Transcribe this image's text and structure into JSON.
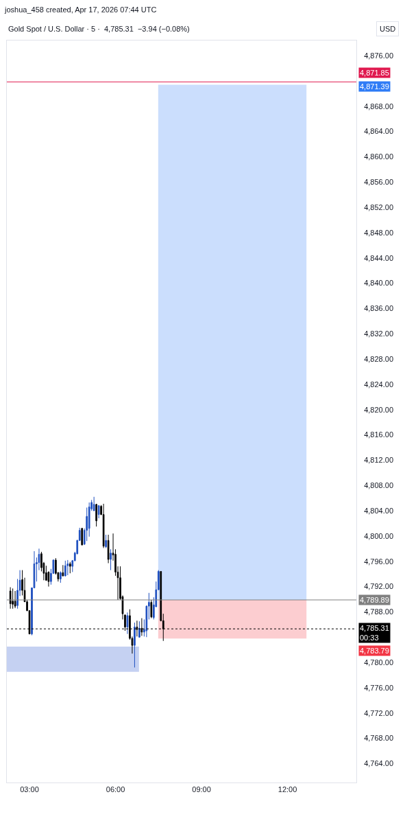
{
  "chart_data": {
    "type": "candlestick",
    "title": "Gold Spot / U.S. Dollar · 5 ·  4,785.31  −3.94 (−0.08%)",
    "annotations": [
      "joshua_458 created, Apr 17, 2026 07:44 UTC",
      "USD",
      "00:33",
      "4,871.39",
      "4,783.79"
    ],
    "x": [
      2.3333,
      2.4167,
      2.5,
      2.5833,
      2.6667,
      2.75,
      2.8333,
      2.9167,
      3,
      3.0833,
      3.1667,
      3.25,
      3.3333,
      3.4167,
      3.5,
      3.5833,
      3.6667,
      3.75,
      3.8333,
      3.9167,
      4,
      4.0833,
      4.1667,
      4.25,
      4.3333,
      4.4167,
      4.5,
      4.5833,
      4.6667,
      4.75,
      4.8333,
      4.9167,
      5,
      5.0833,
      5.1667,
      5.25,
      5.3333,
      5.4167,
      5.5,
      5.5833,
      5.6667,
      5.75,
      5.8333,
      5.9167,
      6,
      6.0833,
      6.1667,
      6.25,
      6.3333,
      6.4167,
      6.5,
      6.5833,
      6.6667,
      6.75,
      6.8333,
      6.9167,
      7,
      7.0833,
      7.1667,
      7.25,
      7.3333,
      7.4167,
      7.5,
      7.5833,
      7.6667
    ],
    "ohlc": [
      [
        4791.3,
        4791.9,
        4788.5,
        4789.3
      ],
      [
        4789.7,
        4791.7,
        4788.5,
        4789.2
      ],
      [
        4789.7,
        4791.3,
        4788.6,
        4788.9
      ],
      [
        4789.0,
        4793.2,
        4788.5,
        4791.4
      ],
      [
        4791.4,
        4794.6,
        4790.5,
        4793.0
      ],
      [
        4793.1,
        4794.6,
        4790.6,
        4791.4
      ],
      [
        4791.4,
        4793.4,
        4789.6,
        4789.6
      ],
      [
        4789.6,
        4789.9,
        4788.1,
        4788.2
      ],
      [
        4788.2,
        4788.2,
        4784.5,
        4784.5
      ],
      [
        4784.5,
        4791.8,
        4784.3,
        4791.8
      ],
      [
        4791.8,
        4797.6,
        4791.8,
        4795.6
      ],
      [
        4795.6,
        4796.6,
        4792.8,
        4795.8
      ],
      [
        4795.8,
        4798.0,
        4794.6,
        4797.1
      ],
      [
        4797.2,
        4797.5,
        4794.4,
        4795.0
      ],
      [
        4795.7,
        4795.9,
        4793.0,
        4794.1
      ],
      [
        4794.2,
        4795.3,
        4792.9,
        4793.0
      ],
      [
        4794.3,
        4794.4,
        4792.0,
        4792.8
      ],
      [
        4792.8,
        4794.8,
        4792.3,
        4794.1
      ],
      [
        4794.1,
        4796.3,
        4794.0,
        4796.2
      ],
      [
        4796.2,
        4796.5,
        4793.9,
        4794.1
      ],
      [
        4794.2,
        4794.3,
        4792.8,
        4793.2
      ],
      [
        4793.2,
        4794.4,
        4792.6,
        4794.2
      ],
      [
        4794.2,
        4795.4,
        4793.6,
        4793.7
      ],
      [
        4793.7,
        4796.1,
        4793.6,
        4795.3
      ],
      [
        4795.3,
        4796.2,
        4793.8,
        4795.6
      ],
      [
        4795.6,
        4795.9,
        4794.1,
        4795.2
      ],
      [
        4795.2,
        4796.2,
        4794.3,
        4796.1
      ],
      [
        4796.1,
        4797.5,
        4796.0,
        4797.3
      ],
      [
        4797.2,
        4799.4,
        4797.1,
        4799.3
      ],
      [
        4799.3,
        4801.3,
        4799.2,
        4800.9
      ],
      [
        4801.2,
        4801.3,
        4798.5,
        4798.6
      ],
      [
        4798.7,
        4801.2,
        4798.6,
        4800.9
      ],
      [
        4800.9,
        4804.5,
        4799.2,
        4803.1
      ],
      [
        4801.2,
        4805.3,
        4799.9,
        4804.6
      ],
      [
        4804.3,
        4805.7,
        4804.0,
        4805.3
      ],
      [
        4804.0,
        4806.2,
        4804.0,
        4805.0
      ],
      [
        4805.0,
        4805.1,
        4801.5,
        4802.4
      ],
      [
        4803.4,
        4804.9,
        4802.8,
        4804.8
      ],
      [
        4804.7,
        4804.9,
        4803.3,
        4803.4
      ],
      [
        4803.4,
        4805.1,
        4798.1,
        4798.4
      ],
      [
        4798.3,
        4800.2,
        4798.1,
        4799.3
      ],
      [
        4799.3,
        4800.2,
        4795.7,
        4796.3
      ],
      [
        4796.3,
        4797.9,
        4794.6,
        4797.3
      ],
      [
        4797.3,
        4800.4,
        4796.1,
        4797.0
      ],
      [
        4797.1,
        4797.9,
        4793.7,
        4794.3
      ],
      [
        4794.3,
        4795.2,
        4789.9,
        4793.4
      ],
      [
        4793.4,
        4795.2,
        4789.9,
        4790.1
      ],
      [
        4790.4,
        4790.6,
        4786.8,
        4787.7
      ],
      [
        4787.5,
        4787.6,
        4785.0,
        4785.6
      ],
      [
        4785.6,
        4787.9,
        4784.5,
        4787.4
      ],
      [
        4787.4,
        4788.4,
        4783.6,
        4783.8
      ],
      [
        4783.8,
        4784.1,
        4781.4,
        4782.7
      ],
      [
        4782.7,
        4786.3,
        4779.2,
        4785.6
      ],
      [
        4785.6,
        4786.6,
        4784.1,
        4785.2
      ],
      [
        4784.0,
        4786.5,
        4783.9,
        4785.4
      ],
      [
        4785.4,
        4787.0,
        4784.2,
        4784.8
      ],
      [
        4784.8,
        4786.8,
        4784.1,
        4785.2
      ],
      [
        4785.0,
        4789.0,
        4784.0,
        4788.9
      ],
      [
        4788.9,
        4791.0,
        4786.8,
        4789.5
      ],
      [
        4789.5,
        4789.9,
        4787.0,
        4787.2
      ],
      [
        4787.1,
        4790.3,
        4786.8,
        4789.1
      ],
      [
        4788.8,
        4792.8,
        4788.8,
        4791.5
      ],
      [
        4791.5,
        4794.6,
        4791.5,
        4794.4
      ],
      [
        4794.4,
        4794.4,
        4786.5,
        4786.6
      ],
      [
        4786.6,
        4787.7,
        4783.4,
        4785.31
      ]
    ],
    "colors": [
      "#000000",
      "#000000",
      "#000000",
      "#1e4fbf",
      "#1e4fbf",
      "#000000",
      "#000000",
      "#000000",
      "#000000",
      "#1e4fbf",
      "#1e4fbf",
      "#1e4fbf",
      "#1e4fbf",
      "#000000",
      "#000000",
      "#000000",
      "#000000",
      "#1e4fbf",
      "#1e4fbf",
      "#000000",
      "#000000",
      "#1e4fbf",
      "#000000",
      "#1e4fbf",
      "#1e4fbf",
      "#000000",
      "#1e4fbf",
      "#1e4fbf",
      "#1e4fbf",
      "#1e4fbf",
      "#000000",
      "#1e4fbf",
      "#1e4fbf",
      "#1e4fbf",
      "#1e4fbf",
      "#1e4fbf",
      "#000000",
      "#1e4fbf",
      "#000000",
      "#000000",
      "#1e4fbf",
      "#000000",
      "#1e4fbf",
      "#000000",
      "#000000",
      "#000000",
      "#000000",
      "#000000",
      "#000000",
      "#1e4fbf",
      "#000000",
      "#000000",
      "#1e4fbf",
      "#000000",
      "#1e4fbf",
      "#000000",
      "#1e4fbf",
      "#1e4fbf",
      "#1e4fbf",
      "#000000",
      "#1e4fbf",
      "#1e4fbf",
      "#1e4fbf",
      "#000000",
      "#000000"
    ],
    "xlim": [
      2.211,
      14.4
    ],
    "xticks": [
      {
        "value": 3,
        "label": "03:00"
      },
      {
        "value": 6,
        "label": "06:00"
      },
      {
        "value": 9,
        "label": "09:00"
      },
      {
        "value": 12,
        "label": "12:00"
      }
    ],
    "ylim": [
      4761.0,
      4878.4
    ],
    "yticks": [
      {
        "value": 4764,
        "label": "4,764.00"
      },
      {
        "value": 4768,
        "label": "4,768.00"
      },
      {
        "value": 4772,
        "label": "4,772.00"
      },
      {
        "value": 4776,
        "label": "4,776.00"
      },
      {
        "value": 4780,
        "label": "4,780.00"
      },
      {
        "value": 4788,
        "label": "4,788.00"
      },
      {
        "value": 4792,
        "label": "4,792.00"
      },
      {
        "value": 4796,
        "label": "4,796.00"
      },
      {
        "value": 4800,
        "label": "4,800.00"
      },
      {
        "value": 4804,
        "label": "4,804.00"
      },
      {
        "value": 4808,
        "label": "4,808.00"
      },
      {
        "value": 4812,
        "label": "4,812.00"
      },
      {
        "value": 4816,
        "label": "4,816.00"
      },
      {
        "value": 4820,
        "label": "4,820.00"
      },
      {
        "value": 4824,
        "label": "4,824.00"
      },
      {
        "value": 4828,
        "label": "4,828.00"
      },
      {
        "value": 4832,
        "label": "4,832.00"
      },
      {
        "value": 4836,
        "label": "4,836.00"
      },
      {
        "value": 4840,
        "label": "4,840.00"
      },
      {
        "value": 4844,
        "label": "4,844.00"
      },
      {
        "value": 4848,
        "label": "4,848.00"
      },
      {
        "value": 4852,
        "label": "4,852.00"
      },
      {
        "value": 4856,
        "label": "4,856.00"
      },
      {
        "value": 4860,
        "label": "4,860.00"
      },
      {
        "value": 4864,
        "label": "4,864.00"
      },
      {
        "value": 4868,
        "label": "4,868.00"
      },
      {
        "value": 4876,
        "label": "4,876.00"
      }
    ],
    "ref_lines": [
      {
        "axis": "y",
        "value": 4871.85,
        "label": "4,871.85",
        "color": "#e0194f",
        "line_style": "solid"
      },
      {
        "axis": "y",
        "value": 4785.31,
        "label": "4,785.31",
        "color": "#000000",
        "line_style": "dotted"
      },
      {
        "axis": "y",
        "value": 4789.89,
        "label": "4,789.89",
        "color": "#808080",
        "line_style": "solid"
      }
    ],
    "bands": [
      {
        "axis": "y",
        "from": 4789.89,
        "to": 4871.39,
        "color": "#2f7cf6"
      },
      {
        "axis": "y",
        "from": 4783.79,
        "to": 4789.89,
        "color": "#f23645"
      },
      {
        "axis": "y",
        "from": 4778.5,
        "to": 4782.5,
        "color": "#1848cc"
      }
    ],
    "grid": false
  }
}
